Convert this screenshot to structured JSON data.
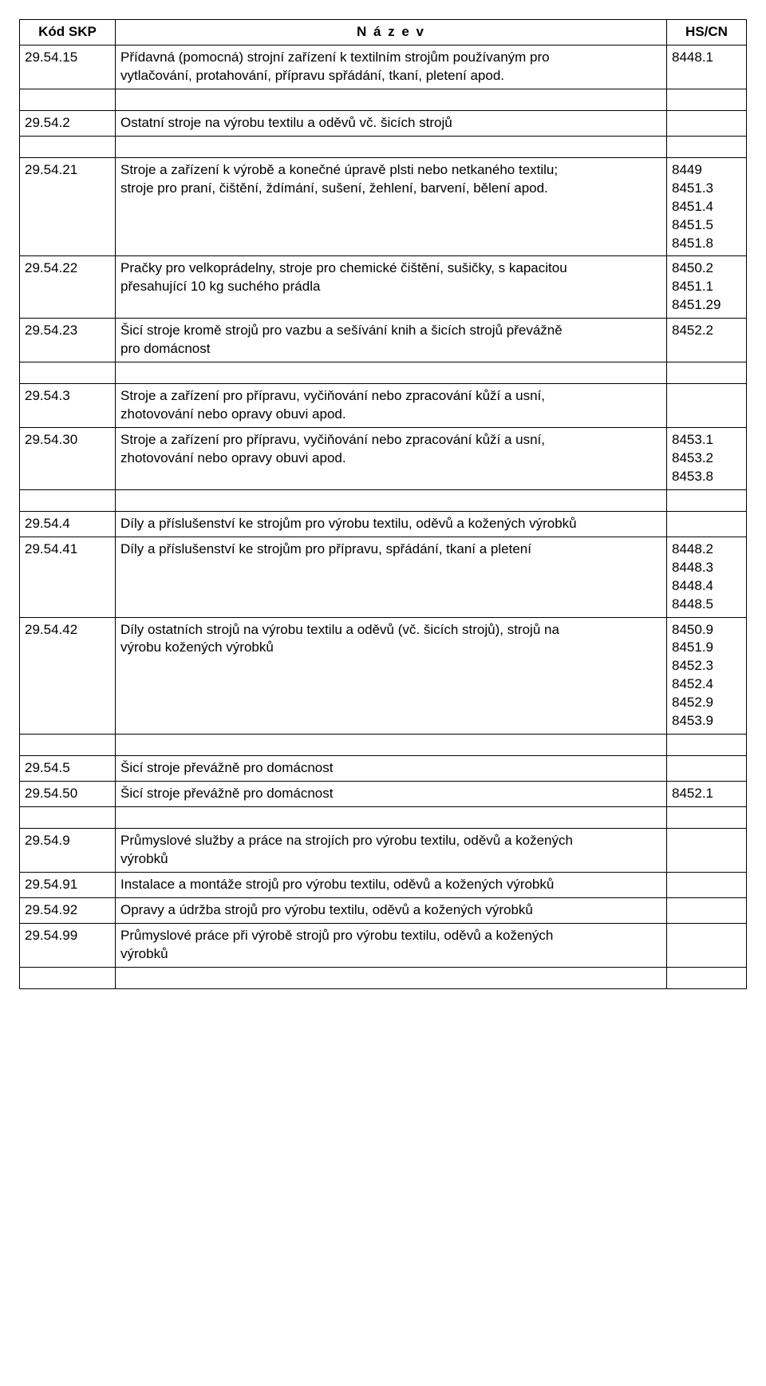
{
  "headers": {
    "code": "Kód SKP",
    "name": "N á z e v",
    "hs": "HS/CN"
  },
  "rows": [
    {
      "code": "29.54.15",
      "name": "Přídavná (pomocná) strojní zařízení k textilním strojům používaným pro\nvytlačování, protahování, přípravu spřádání, tkaní, pletení apod.",
      "hs": "8448.1"
    },
    {
      "spacer": true
    },
    {
      "code": "29.54.2",
      "name": "Ostatní stroje na výrobu textilu a oděvů vč. šicích strojů",
      "hs": ""
    },
    {
      "spacer": true
    },
    {
      "code": "29.54.21",
      "name": "Stroje a zařízení k výrobě a konečné úpravě plsti nebo netkaného textilu;\nstroje pro praní, čištění, ždímání, sušení, žehlení, barvení, bělení apod.",
      "hs": "8449\n8451.3\n8451.4\n8451.5\n8451.8"
    },
    {
      "code": "29.54.22",
      "name": "Pračky pro velkoprádelny, stroje pro chemické čištění, sušičky, s kapacitou\npřesahující 10 kg suchého prádla",
      "hs": "8450.2\n8451.1\n8451.29"
    },
    {
      "code": "29.54.23",
      "name": "Šicí stroje kromě strojů pro vazbu a sešívání knih a šicích strojů převážně\npro domácnost",
      "hs": "8452.2"
    },
    {
      "spacer": true
    },
    {
      "code": "29.54.3",
      "name": "Stroje a zařízení pro přípravu, vyčiňování nebo zpracování kůží a usní,\nzhotovování nebo opravy obuvi apod.",
      "hs": ""
    },
    {
      "code": "29.54.30",
      "name": "Stroje a zařízení pro přípravu, vyčiňování nebo zpracování kůží a usní,\nzhotovování nebo opravy obuvi apod.",
      "hs": "8453.1\n8453.2\n8453.8"
    },
    {
      "spacer": true
    },
    {
      "code": "29.54.4",
      "name": "Díly a příslušenství ke strojům pro výrobu textilu, oděvů a kožených výrobků",
      "hs": ""
    },
    {
      "code": "29.54.41",
      "name": "Díly a příslušenství ke strojům pro přípravu, spřádání, tkaní a pletení",
      "hs": "8448.2\n8448.3\n8448.4\n8448.5"
    },
    {
      "code": "29.54.42",
      "name": "Díly ostatních strojů na výrobu textilu a oděvů (vč. šicích strojů), strojů na\nvýrobu kožených výrobků",
      "hs": "8450.9\n8451.9\n8452.3\n8452.4\n8452.9\n8453.9"
    },
    {
      "spacer": true
    },
    {
      "code": "29.54.5",
      "name": "Šicí stroje převážně pro domácnost",
      "hs": ""
    },
    {
      "code": "29.54.50",
      "name": "Šicí stroje převážně pro domácnost",
      "hs": "8452.1"
    },
    {
      "spacer": true
    },
    {
      "code": "29.54.9",
      "name": "Průmyslové služby a práce na strojích pro výrobu textilu, oděvů a kožených\nvýrobků",
      "hs": ""
    },
    {
      "code": "29.54.91",
      "name": "Instalace a montáže strojů pro výrobu textilu, oděvů a kožených výrobků",
      "hs": ""
    },
    {
      "code": "29.54.92",
      "name": "Opravy a údržba strojů pro výrobu textilu, oděvů a kožených výrobků",
      "hs": ""
    },
    {
      "code": "29.54.99",
      "name": "Průmyslové práce při výrobě strojů pro výrobu textilu, oděvů a kožených\nvýrobků",
      "hs": ""
    },
    {
      "spacer": true
    }
  ]
}
